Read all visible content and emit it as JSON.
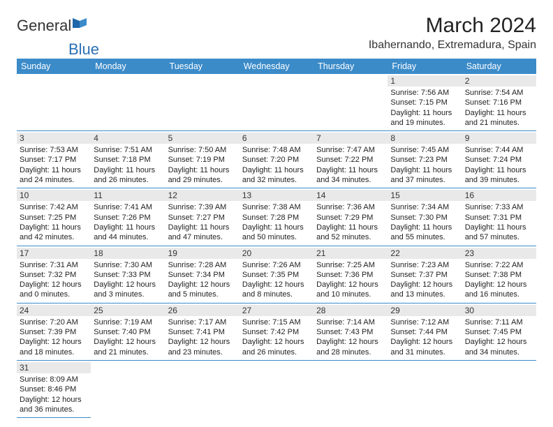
{
  "logo": {
    "text_a": "General",
    "text_b": "Blue"
  },
  "title": "March 2024",
  "location": "Ibahernando, Extremadura, Spain",
  "colors": {
    "header_bg": "#3b8bc9",
    "header_fg": "#ffffff",
    "daynum_bg": "#e9e9e9",
    "rule": "#3b8bc9"
  },
  "weekdays": [
    "Sunday",
    "Monday",
    "Tuesday",
    "Wednesday",
    "Thursday",
    "Friday",
    "Saturday"
  ],
  "weeks": [
    [
      null,
      null,
      null,
      null,
      null,
      {
        "n": "1",
        "sr": "Sunrise: 7:56 AM",
        "ss": "Sunset: 7:15 PM",
        "dl": "Daylight: 11 hours and 19 minutes."
      },
      {
        "n": "2",
        "sr": "Sunrise: 7:54 AM",
        "ss": "Sunset: 7:16 PM",
        "dl": "Daylight: 11 hours and 21 minutes."
      }
    ],
    [
      {
        "n": "3",
        "sr": "Sunrise: 7:53 AM",
        "ss": "Sunset: 7:17 PM",
        "dl": "Daylight: 11 hours and 24 minutes."
      },
      {
        "n": "4",
        "sr": "Sunrise: 7:51 AM",
        "ss": "Sunset: 7:18 PM",
        "dl": "Daylight: 11 hours and 26 minutes."
      },
      {
        "n": "5",
        "sr": "Sunrise: 7:50 AM",
        "ss": "Sunset: 7:19 PM",
        "dl": "Daylight: 11 hours and 29 minutes."
      },
      {
        "n": "6",
        "sr": "Sunrise: 7:48 AM",
        "ss": "Sunset: 7:20 PM",
        "dl": "Daylight: 11 hours and 32 minutes."
      },
      {
        "n": "7",
        "sr": "Sunrise: 7:47 AM",
        "ss": "Sunset: 7:22 PM",
        "dl": "Daylight: 11 hours and 34 minutes."
      },
      {
        "n": "8",
        "sr": "Sunrise: 7:45 AM",
        "ss": "Sunset: 7:23 PM",
        "dl": "Daylight: 11 hours and 37 minutes."
      },
      {
        "n": "9",
        "sr": "Sunrise: 7:44 AM",
        "ss": "Sunset: 7:24 PM",
        "dl": "Daylight: 11 hours and 39 minutes."
      }
    ],
    [
      {
        "n": "10",
        "sr": "Sunrise: 7:42 AM",
        "ss": "Sunset: 7:25 PM",
        "dl": "Daylight: 11 hours and 42 minutes."
      },
      {
        "n": "11",
        "sr": "Sunrise: 7:41 AM",
        "ss": "Sunset: 7:26 PM",
        "dl": "Daylight: 11 hours and 44 minutes."
      },
      {
        "n": "12",
        "sr": "Sunrise: 7:39 AM",
        "ss": "Sunset: 7:27 PM",
        "dl": "Daylight: 11 hours and 47 minutes."
      },
      {
        "n": "13",
        "sr": "Sunrise: 7:38 AM",
        "ss": "Sunset: 7:28 PM",
        "dl": "Daylight: 11 hours and 50 minutes."
      },
      {
        "n": "14",
        "sr": "Sunrise: 7:36 AM",
        "ss": "Sunset: 7:29 PM",
        "dl": "Daylight: 11 hours and 52 minutes."
      },
      {
        "n": "15",
        "sr": "Sunrise: 7:34 AM",
        "ss": "Sunset: 7:30 PM",
        "dl": "Daylight: 11 hours and 55 minutes."
      },
      {
        "n": "16",
        "sr": "Sunrise: 7:33 AM",
        "ss": "Sunset: 7:31 PM",
        "dl": "Daylight: 11 hours and 57 minutes."
      }
    ],
    [
      {
        "n": "17",
        "sr": "Sunrise: 7:31 AM",
        "ss": "Sunset: 7:32 PM",
        "dl": "Daylight: 12 hours and 0 minutes."
      },
      {
        "n": "18",
        "sr": "Sunrise: 7:30 AM",
        "ss": "Sunset: 7:33 PM",
        "dl": "Daylight: 12 hours and 3 minutes."
      },
      {
        "n": "19",
        "sr": "Sunrise: 7:28 AM",
        "ss": "Sunset: 7:34 PM",
        "dl": "Daylight: 12 hours and 5 minutes."
      },
      {
        "n": "20",
        "sr": "Sunrise: 7:26 AM",
        "ss": "Sunset: 7:35 PM",
        "dl": "Daylight: 12 hours and 8 minutes."
      },
      {
        "n": "21",
        "sr": "Sunrise: 7:25 AM",
        "ss": "Sunset: 7:36 PM",
        "dl": "Daylight: 12 hours and 10 minutes."
      },
      {
        "n": "22",
        "sr": "Sunrise: 7:23 AM",
        "ss": "Sunset: 7:37 PM",
        "dl": "Daylight: 12 hours and 13 minutes."
      },
      {
        "n": "23",
        "sr": "Sunrise: 7:22 AM",
        "ss": "Sunset: 7:38 PM",
        "dl": "Daylight: 12 hours and 16 minutes."
      }
    ],
    [
      {
        "n": "24",
        "sr": "Sunrise: 7:20 AM",
        "ss": "Sunset: 7:39 PM",
        "dl": "Daylight: 12 hours and 18 minutes."
      },
      {
        "n": "25",
        "sr": "Sunrise: 7:19 AM",
        "ss": "Sunset: 7:40 PM",
        "dl": "Daylight: 12 hours and 21 minutes."
      },
      {
        "n": "26",
        "sr": "Sunrise: 7:17 AM",
        "ss": "Sunset: 7:41 PM",
        "dl": "Daylight: 12 hours and 23 minutes."
      },
      {
        "n": "27",
        "sr": "Sunrise: 7:15 AM",
        "ss": "Sunset: 7:42 PM",
        "dl": "Daylight: 12 hours and 26 minutes."
      },
      {
        "n": "28",
        "sr": "Sunrise: 7:14 AM",
        "ss": "Sunset: 7:43 PM",
        "dl": "Daylight: 12 hours and 28 minutes."
      },
      {
        "n": "29",
        "sr": "Sunrise: 7:12 AM",
        "ss": "Sunset: 7:44 PM",
        "dl": "Daylight: 12 hours and 31 minutes."
      },
      {
        "n": "30",
        "sr": "Sunrise: 7:11 AM",
        "ss": "Sunset: 7:45 PM",
        "dl": "Daylight: 12 hours and 34 minutes."
      }
    ],
    [
      {
        "n": "31",
        "sr": "Sunrise: 8:09 AM",
        "ss": "Sunset: 8:46 PM",
        "dl": "Daylight: 12 hours and 36 minutes."
      },
      null,
      null,
      null,
      null,
      null,
      null
    ]
  ]
}
